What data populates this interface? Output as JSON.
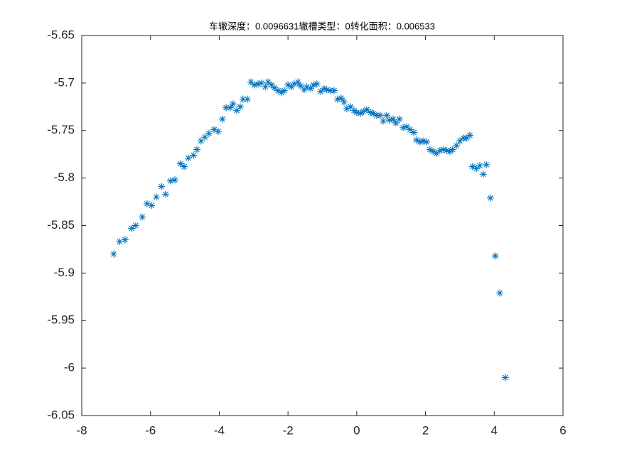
{
  "chart_data": {
    "type": "scatter",
    "title": "车辙深度：0.0096631辙槽类型：0转化面积：0.006533",
    "color": "#0072bd",
    "marker": "asterisk",
    "x": [
      -7.07,
      -6.9,
      -6.74,
      -6.55,
      -6.43,
      -6.24,
      -6.1,
      -5.97,
      -5.83,
      -5.68,
      -5.56,
      -5.42,
      -5.29,
      -5.13,
      -5.02,
      -4.9,
      -4.75,
      -4.65,
      -4.53,
      -4.42,
      -4.3,
      -4.15,
      -4.03,
      -3.91,
      -3.8,
      -3.68,
      -3.6,
      -3.49,
      -3.39,
      -3.31,
      -3.18,
      -3.08,
      -2.98,
      -2.87,
      -2.77,
      -2.66,
      -2.58,
      -2.48,
      -2.4,
      -2.29,
      -2.19,
      -2.11,
      -2.0,
      -1.9,
      -1.82,
      -1.71,
      -1.63,
      -1.53,
      -1.45,
      -1.34,
      -1.26,
      -1.16,
      -1.05,
      -0.95,
      -0.87,
      -0.76,
      -0.66,
      -0.56,
      -0.45,
      -0.37,
      -0.29,
      -0.18,
      -0.08,
      0.0,
      0.11,
      0.19,
      0.29,
      0.4,
      0.48,
      0.58,
      0.68,
      0.77,
      0.87,
      0.95,
      1.06,
      1.14,
      1.24,
      1.35,
      1.45,
      1.55,
      1.66,
      1.74,
      1.84,
      1.93,
      2.03,
      2.13,
      2.22,
      2.32,
      2.42,
      2.53,
      2.61,
      2.71,
      2.79,
      2.9,
      3.0,
      3.1,
      3.19,
      3.29,
      3.37,
      3.48,
      3.58,
      3.68,
      3.77,
      3.89,
      4.03,
      4.16,
      4.32
    ],
    "values": [
      -5.88,
      -5.867,
      -5.865,
      -5.853,
      -5.85,
      -5.841,
      -5.827,
      -5.829,
      -5.82,
      -5.809,
      -5.817,
      -5.803,
      -5.802,
      -5.785,
      -5.788,
      -5.779,
      -5.776,
      -5.77,
      -5.761,
      -5.757,
      -5.753,
      -5.749,
      -5.751,
      -5.738,
      -5.726,
      -5.726,
      -5.722,
      -5.729,
      -5.725,
      -5.717,
      -5.717,
      -5.699,
      -5.702,
      -5.701,
      -5.7,
      -5.704,
      -5.699,
      -5.702,
      -5.705,
      -5.708,
      -5.71,
      -5.708,
      -5.702,
      -5.704,
      -5.701,
      -5.699,
      -5.703,
      -5.707,
      -5.704,
      -5.706,
      -5.702,
      -5.701,
      -5.709,
      -5.706,
      -5.707,
      -5.708,
      -5.708,
      -5.717,
      -5.716,
      -5.72,
      -5.727,
      -5.725,
      -5.729,
      -5.731,
      -5.732,
      -5.73,
      -5.728,
      -5.731,
      -5.732,
      -5.734,
      -5.734,
      -5.74,
      -5.734,
      -5.739,
      -5.738,
      -5.742,
      -5.738,
      -5.747,
      -5.746,
      -5.749,
      -5.752,
      -5.76,
      -5.762,
      -5.761,
      -5.762,
      -5.77,
      -5.772,
      -5.774,
      -5.771,
      -5.77,
      -5.771,
      -5.772,
      -5.77,
      -5.766,
      -5.761,
      -5.758,
      -5.758,
      -5.755,
      -5.788,
      -5.79,
      -5.787,
      -5.796,
      -5.786,
      -5.821,
      -5.882,
      -5.921,
      -6.01
    ],
    "xlim": [
      -8,
      6
    ],
    "xticks": [
      -8,
      -6,
      -4,
      -2,
      0,
      2,
      4,
      6
    ],
    "ylim": [
      -6.05,
      -5.65
    ],
    "yticks": [
      -6.05,
      -6,
      -5.95,
      -5.9,
      -5.85,
      -5.8,
      -5.75,
      -5.7,
      -5.65
    ]
  }
}
